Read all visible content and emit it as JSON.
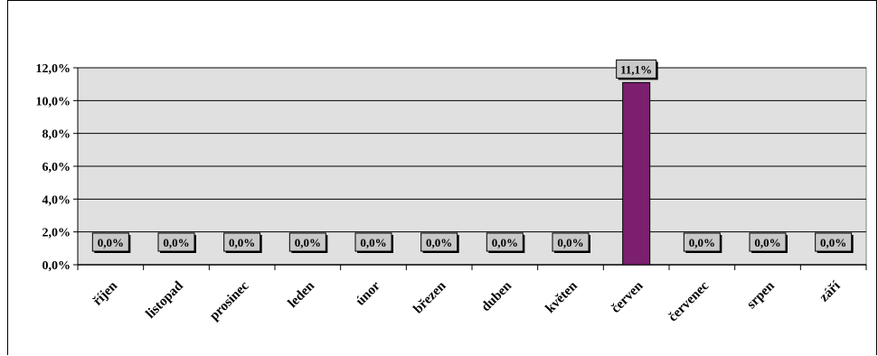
{
  "chart_data": {
    "type": "bar",
    "categories": [
      "říjen",
      "listopad",
      "prosinec",
      "leden",
      "únor",
      "březen",
      "duben",
      "květen",
      "červen",
      "červenec",
      "srpen",
      "září"
    ],
    "values": [
      0.0,
      0.0,
      0.0,
      0.0,
      0.0,
      0.0,
      0.0,
      0.0,
      11.1,
      0.0,
      0.0,
      0.0
    ],
    "data_labels": [
      "0,0%",
      "0,0%",
      "0,0%",
      "0,0%",
      "0,0%",
      "0,0%",
      "0,0%",
      "0,0%",
      "11,1%",
      "0,0%",
      "0,0%",
      "0,0%"
    ],
    "y_ticks": [
      0,
      2,
      4,
      6,
      8,
      10,
      12
    ],
    "y_tick_labels": [
      "0,0%",
      "2,0%",
      "4,0%",
      "6,0%",
      "8,0%",
      "10,0%",
      "12,0%"
    ],
    "ylim": [
      0,
      12
    ],
    "grid": true,
    "colors": {
      "bar": "#7b1f6e",
      "plot_bg": "#e0e0e0",
      "label_box": "#c8c8c8"
    }
  }
}
